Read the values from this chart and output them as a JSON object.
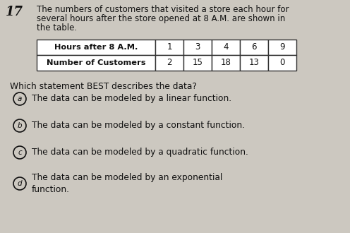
{
  "question_number": "17",
  "intro_line1": "The numbers of customers that visited a store each hour for",
  "intro_line2": "several hours after the store opened at 8 A.M. are shown in",
  "intro_line3": "the table.",
  "table_header_label": "Hours after 8 A.M.",
  "table_header_vals": [
    "1",
    "3",
    "4",
    "6",
    "9"
  ],
  "table_row_label": "Number of Customers",
  "table_row_vals": [
    "2",
    "15",
    "18",
    "13",
    "0"
  ],
  "question": "Which statement BEST describes the data?",
  "option_letters": [
    "a",
    "b",
    "c",
    "d"
  ],
  "option_texts": [
    "The data can be modeled by a linear function.",
    "The data can be modeled by a constant function.",
    "The data can be modeled by a quadratic function.",
    "The data can be modeled by an exponential\nfunction."
  ],
  "bg_color": "#ccc8c0",
  "text_color": "#111111",
  "fs_intro": 8.5,
  "fs_qnum": 13,
  "fs_table_label": 8.2,
  "fs_table_val": 8.5,
  "fs_question": 8.8,
  "fs_option": 8.8,
  "fs_letter": 7.5
}
